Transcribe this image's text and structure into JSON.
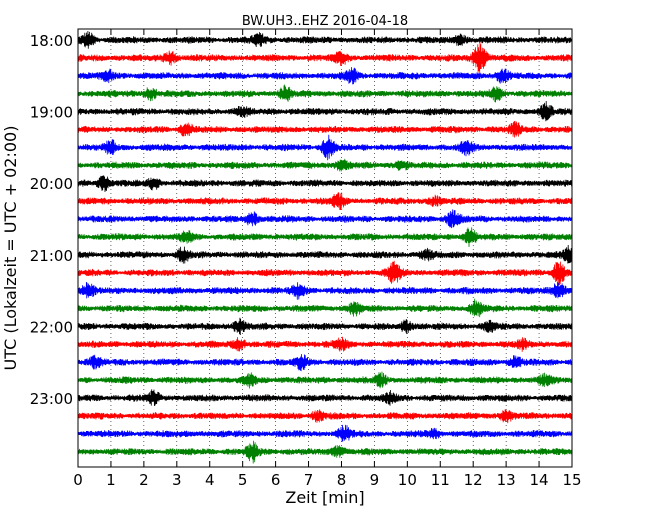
{
  "chart_data": {
    "type": "line",
    "title": "BW.UH3..EHZ 2016-04-18",
    "xlabel": "Zeit  [min]",
    "ylabel": "UTC (Lokalzeit = UTC + 02:00)",
    "xlim": [
      0,
      15
    ],
    "x_ticks": [
      "0",
      "1",
      "2",
      "3",
      "4",
      "5",
      "6",
      "7",
      "8",
      "9",
      "10",
      "11",
      "12",
      "13",
      "14",
      "15"
    ],
    "y_tick_labels": [
      "18:00",
      "19:00",
      "20:00",
      "21:00",
      "22:00",
      "23:00"
    ],
    "x_grid": true,
    "y_grid": false,
    "trace_minutes": 15,
    "series_colors": [
      "#000000",
      "#ff0000",
      "#0000ff",
      "#008000"
    ],
    "traces": [
      {
        "start": "18:00",
        "color": "#000000",
        "events": [
          {
            "t": 0.3,
            "amp": 1.0
          },
          {
            "t": 5.5,
            "amp": 0.8
          },
          {
            "t": 11.6,
            "amp": 0.7
          }
        ]
      },
      {
        "start": "18:15",
        "color": "#ff0000",
        "events": [
          {
            "t": 2.8,
            "amp": 0.9
          },
          {
            "t": 8.0,
            "amp": 1.0
          },
          {
            "t": 12.2,
            "amp": 2.2
          }
        ]
      },
      {
        "start": "18:30",
        "color": "#0000ff",
        "events": [
          {
            "t": 0.9,
            "amp": 0.7
          },
          {
            "t": 8.3,
            "amp": 1.0
          },
          {
            "t": 12.9,
            "amp": 1.0
          }
        ]
      },
      {
        "start": "18:45",
        "color": "#008000",
        "events": [
          {
            "t": 2.2,
            "amp": 0.8
          },
          {
            "t": 6.3,
            "amp": 0.9
          },
          {
            "t": 12.7,
            "amp": 0.9
          }
        ]
      },
      {
        "start": "19:00",
        "color": "#000000",
        "events": [
          {
            "t": 5.0,
            "amp": 0.6
          },
          {
            "t": 14.2,
            "amp": 1.1
          }
        ]
      },
      {
        "start": "19:15",
        "color": "#ff0000",
        "events": [
          {
            "t": 3.3,
            "amp": 1.0
          },
          {
            "t": 13.3,
            "amp": 0.8
          }
        ]
      },
      {
        "start": "19:30",
        "color": "#0000ff",
        "events": [
          {
            "t": 1.0,
            "amp": 0.8
          },
          {
            "t": 7.6,
            "amp": 1.6
          },
          {
            "t": 11.8,
            "amp": 0.9
          }
        ]
      },
      {
        "start": "19:45",
        "color": "#008000",
        "events": [
          {
            "t": 8.0,
            "amp": 0.7
          },
          {
            "t": 9.8,
            "amp": 0.6
          }
        ]
      },
      {
        "start": "20:00",
        "color": "#000000",
        "events": [
          {
            "t": 0.8,
            "amp": 1.0
          },
          {
            "t": 2.3,
            "amp": 0.8
          }
        ]
      },
      {
        "start": "20:15",
        "color": "#ff0000",
        "events": [
          {
            "t": 7.9,
            "amp": 1.1
          },
          {
            "t": 10.8,
            "amp": 0.6
          }
        ]
      },
      {
        "start": "20:30",
        "color": "#0000ff",
        "events": [
          {
            "t": 5.3,
            "amp": 0.9
          },
          {
            "t": 11.4,
            "amp": 1.2
          }
        ]
      },
      {
        "start": "20:45",
        "color": "#008000",
        "events": [
          {
            "t": 3.3,
            "amp": 0.7
          },
          {
            "t": 11.9,
            "amp": 1.1
          }
        ]
      },
      {
        "start": "21:00",
        "color": "#000000",
        "events": [
          {
            "t": 3.2,
            "amp": 0.9
          },
          {
            "t": 10.6,
            "amp": 0.7
          },
          {
            "t": 14.9,
            "amp": 1.0
          }
        ]
      },
      {
        "start": "21:15",
        "color": "#ff0000",
        "events": [
          {
            "t": 9.6,
            "amp": 1.5
          },
          {
            "t": 14.6,
            "amp": 1.5
          }
        ]
      },
      {
        "start": "21:30",
        "color": "#0000ff",
        "events": [
          {
            "t": 0.3,
            "amp": 1.0
          },
          {
            "t": 6.7,
            "amp": 1.0
          },
          {
            "t": 14.6,
            "amp": 1.2
          }
        ]
      },
      {
        "start": "21:45",
        "color": "#008000",
        "events": [
          {
            "t": 8.4,
            "amp": 0.8
          },
          {
            "t": 12.1,
            "amp": 1.1
          }
        ]
      },
      {
        "start": "22:00",
        "color": "#000000",
        "events": [
          {
            "t": 4.9,
            "amp": 0.9
          },
          {
            "t": 10.0,
            "amp": 0.8
          },
          {
            "t": 12.5,
            "amp": 0.7
          }
        ]
      },
      {
        "start": "22:15",
        "color": "#ff0000",
        "events": [
          {
            "t": 4.9,
            "amp": 0.8
          },
          {
            "t": 8.0,
            "amp": 0.7
          },
          {
            "t": 13.5,
            "amp": 0.6
          }
        ]
      },
      {
        "start": "22:30",
        "color": "#0000ff",
        "events": [
          {
            "t": 0.5,
            "amp": 0.7
          },
          {
            "t": 6.8,
            "amp": 0.9
          },
          {
            "t": 13.3,
            "amp": 0.8
          }
        ]
      },
      {
        "start": "22:45",
        "color": "#008000",
        "events": [
          {
            "t": 5.2,
            "amp": 0.8
          },
          {
            "t": 9.2,
            "amp": 0.8
          },
          {
            "t": 14.2,
            "amp": 0.7
          }
        ]
      },
      {
        "start": "23:00",
        "color": "#000000",
        "events": [
          {
            "t": 2.3,
            "amp": 0.9
          },
          {
            "t": 9.5,
            "amp": 0.7
          }
        ]
      },
      {
        "start": "23:15",
        "color": "#ff0000",
        "events": [
          {
            "t": 7.3,
            "amp": 0.7
          },
          {
            "t": 13.0,
            "amp": 0.7
          }
        ]
      },
      {
        "start": "23:30",
        "color": "#0000ff",
        "events": [
          {
            "t": 8.1,
            "amp": 1.0
          },
          {
            "t": 10.8,
            "amp": 0.5
          }
        ]
      },
      {
        "start": "23:45",
        "color": "#008000",
        "events": [
          {
            "t": 5.3,
            "amp": 1.3
          },
          {
            "t": 7.9,
            "amp": 0.8
          }
        ]
      }
    ]
  }
}
